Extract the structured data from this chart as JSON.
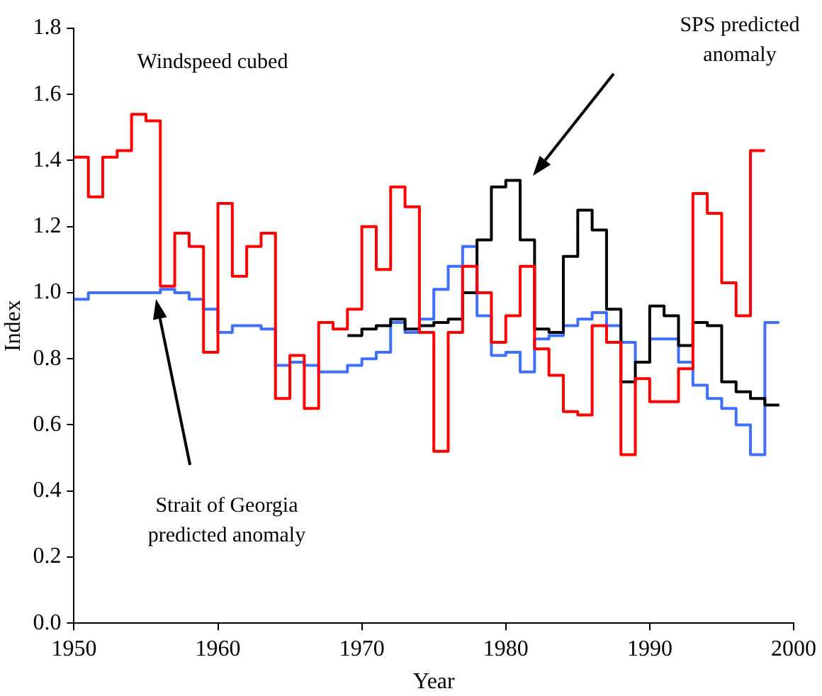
{
  "chart_data": {
    "type": "step",
    "xlabel": "Year",
    "ylabel": "Index",
    "xlim": [
      1950,
      2000
    ],
    "xticks": [
      1950,
      1960,
      1970,
      1980,
      1990,
      2000
    ],
    "ylim": [
      0,
      1.8
    ],
    "yticks": [
      {
        "value": 0,
        "label": "0.0"
      },
      0.2,
      0.4,
      0.6,
      0.8,
      {
        "value": 1,
        "label": "1.0"
      },
      1.2,
      1.4,
      1.6,
      1.8
    ],
    "grid": false,
    "legend": false,
    "annotations": [
      "SPS predicted anomaly",
      "Strait of Georgia predicted anomaly"
    ],
    "series": [
      {
        "name": "Windspeed cubed",
        "color": "#ff0000",
        "x": [
          1950,
          1951,
          1952,
          1953,
          1954,
          1955,
          1956,
          1957,
          1958,
          1959,
          1960,
          1961,
          1962,
          1963,
          1964,
          1965,
          1966,
          1967,
          1968,
          1969,
          1970,
          1971,
          1972,
          1973,
          1974,
          1975,
          1976,
          1977,
          1978,
          1979,
          1980,
          1981,
          1982,
          1983,
          1984,
          1985,
          1986,
          1987,
          1988,
          1989,
          1990,
          1991,
          1992,
          1993,
          1994,
          1995,
          1996,
          1997,
          1998
        ],
        "values": [
          1.41,
          1.29,
          1.41,
          1.43,
          1.54,
          1.52,
          1.02,
          1.18,
          1.14,
          0.82,
          1.27,
          1.05,
          1.14,
          1.18,
          0.68,
          0.81,
          0.65,
          0.91,
          0.89,
          0.95,
          1.2,
          1.07,
          1.32,
          1.26,
          0.88,
          0.52,
          0.88,
          1.08,
          1.0,
          0.85,
          0.93,
          1.08,
          0.83,
          0.75,
          0.64,
          0.63,
          0.9,
          0.85,
          0.51,
          0.74,
          0.67,
          0.67,
          0.77,
          1.3,
          1.24,
          1.03,
          0.93,
          1.43,
          1.43
        ]
      },
      {
        "color": "#000000",
        "x": [
          1969,
          1970,
          1971,
          1972,
          1973,
          1974,
          1975,
          1976,
          1977,
          1978,
          1979,
          1980,
          1981,
          1982,
          1983,
          1984,
          1985,
          1986,
          1987,
          1988,
          1989,
          1990,
          1991,
          1992,
          1993,
          1994,
          1995,
          1996,
          1997,
          1998,
          1999
        ],
        "values": [
          0.87,
          0.89,
          0.9,
          0.92,
          0.89,
          0.9,
          0.91,
          0.92,
          1.0,
          1.16,
          1.32,
          1.34,
          1.16,
          0.89,
          0.88,
          1.11,
          1.25,
          1.19,
          0.95,
          0.73,
          0.79,
          0.96,
          0.93,
          0.84,
          0.91,
          0.9,
          0.73,
          0.7,
          0.68,
          0.66,
          0.66
        ]
      },
      {
        "color": "#3f6fff",
        "x": [
          1950,
          1951,
          1952,
          1953,
          1954,
          1955,
          1956,
          1957,
          1958,
          1959,
          1960,
          1961,
          1962,
          1963,
          1964,
          1965,
          1966,
          1967,
          1968,
          1969,
          1970,
          1971,
          1972,
          1973,
          1974,
          1975,
          1976,
          1977,
          1978,
          1979,
          1980,
          1981,
          1982,
          1983,
          1984,
          1985,
          1986,
          1987,
          1988,
          1989,
          1990,
          1991,
          1992,
          1993,
          1994,
          1995,
          1996,
          1997,
          1998,
          1999
        ],
        "values": [
          0.98,
          1.0,
          1.0,
          1.0,
          1.0,
          1.0,
          1.01,
          1.0,
          0.98,
          0.95,
          0.88,
          0.9,
          0.9,
          0.89,
          0.78,
          0.79,
          0.78,
          0.76,
          0.76,
          0.78,
          0.8,
          0.82,
          0.91,
          0.88,
          0.92,
          1.01,
          1.08,
          1.14,
          0.93,
          0.81,
          0.82,
          0.76,
          0.86,
          0.87,
          0.9,
          0.92,
          0.94,
          0.9,
          0.85,
          0.79,
          0.86,
          0.86,
          0.79,
          0.72,
          0.68,
          0.65,
          0.6,
          0.51,
          0.91,
          0.91
        ]
      }
    ]
  }
}
